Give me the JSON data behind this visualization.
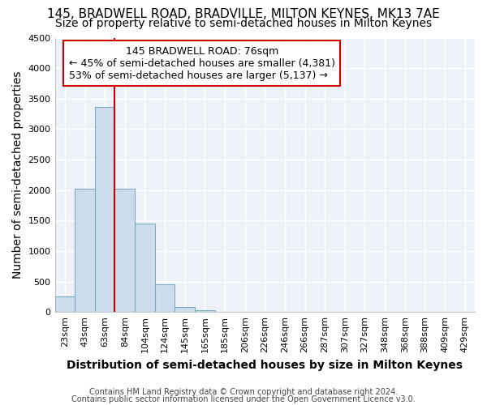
{
  "title": "145, BRADWELL ROAD, BRADVILLE, MILTON KEYNES, MK13 7AE",
  "subtitle": "Size of property relative to semi-detached houses in Milton Keynes",
  "xlabel": "Distribution of semi-detached houses by size in Milton Keynes",
  "ylabel": "Number of semi-detached properties",
  "footer_line1": "Contains HM Land Registry data © Crown copyright and database right 2024.",
  "footer_line2": "Contains public sector information licensed under the Open Government Licence v3.0.",
  "bin_labels": [
    "23sqm",
    "43sqm",
    "63sqm",
    "84sqm",
    "104sqm",
    "124sqm",
    "145sqm",
    "165sqm",
    "185sqm",
    "206sqm",
    "226sqm",
    "246sqm",
    "266sqm",
    "287sqm",
    "307sqm",
    "327sqm",
    "348sqm",
    "368sqm",
    "388sqm",
    "409sqm",
    "429sqm"
  ],
  "bar_values": [
    250,
    2020,
    3370,
    2020,
    1450,
    460,
    80,
    30,
    0,
    0,
    0,
    0,
    0,
    0,
    0,
    0,
    0,
    0,
    0,
    0,
    0
  ],
  "bar_color": "#ccdded",
  "bar_edge_color": "#7aaabb",
  "property_label": "145 BRADWELL ROAD: 76sqm",
  "annotation_line1": "← 45% of semi-detached houses are smaller (4,381)",
  "annotation_line2": "53% of semi-detached houses are larger (5,137) →",
  "annotation_box_edge": "#cc0000",
  "red_line_x": 2.5,
  "ylim": [
    0,
    4500
  ],
  "yticks": [
    0,
    500,
    1000,
    1500,
    2000,
    2500,
    3000,
    3500,
    4000,
    4500
  ],
  "bg_color": "#ffffff",
  "plot_bg_color": "#eef2f8",
  "grid_color": "#ffffff",
  "title_fontsize": 11,
  "subtitle_fontsize": 10,
  "axis_label_fontsize": 10,
  "tick_fontsize": 8,
  "annotation_fontsize": 9,
  "footer_fontsize": 7
}
